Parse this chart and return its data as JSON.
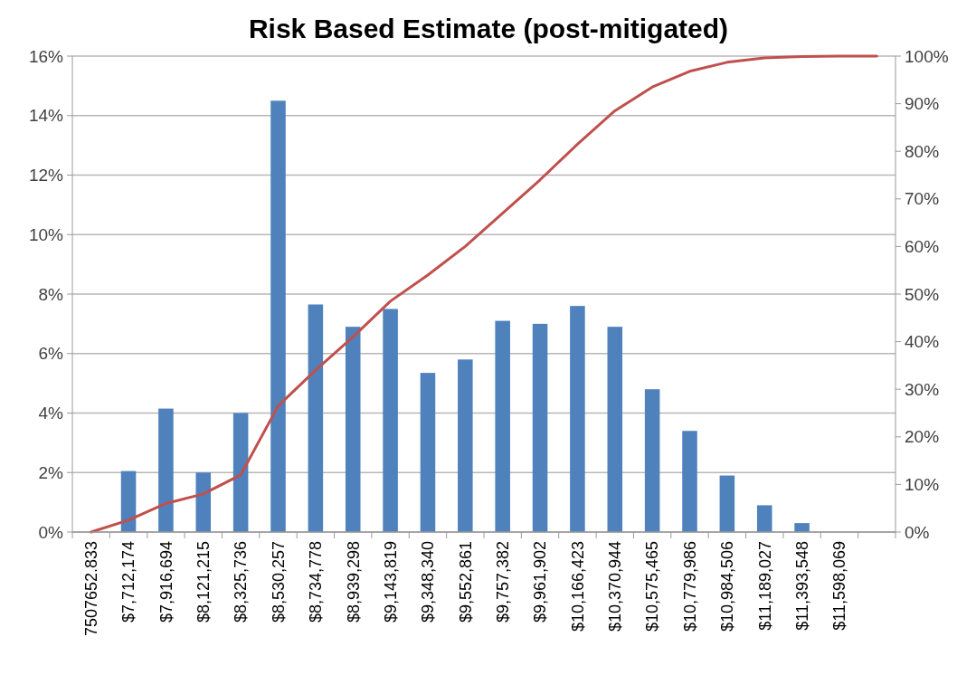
{
  "chart_data": {
    "type": "bar",
    "title": "Risk Based Estimate (post-mitigated)",
    "categories": [
      "7507652.833",
      "$7,712,174",
      "$7,916,694",
      "$8,121,215",
      "$8,325,736",
      "$8,530,257",
      "$8,734,778",
      "$8,939,298",
      "$9,143,819",
      "$9,348,340",
      "$9,552,861",
      "$9,757,382",
      "$9,961,902",
      "$10,166,423",
      "$10,370,944",
      "$10,575,465",
      "$10,779,986",
      "$10,984,506",
      "$11,189,027",
      "$11,393,548",
      "$11,598,069",
      null
    ],
    "series": [
      {
        "color": "#4f81bd",
        "values": [
          0,
          2.05,
          4.15,
          2.0,
          4.0,
          14.5,
          7.65,
          6.9,
          7.5,
          5.35,
          5.8,
          7.1,
          7.0,
          7.6,
          6.9,
          4.8,
          3.4,
          1.9,
          0.9,
          0.3,
          0,
          0
        ]
      },
      {
        "type": "line",
        "axis": "y2",
        "color": "#c0504d",
        "values": [
          0,
          2.5,
          6,
          8,
          12,
          26.5,
          34,
          41,
          48.5,
          54,
          60,
          67,
          74,
          81.5,
          88.5,
          93.5,
          96.8,
          98.7,
          99.6,
          99.9,
          100,
          100
        ]
      }
    ],
    "ylim": [
      0,
      16
    ],
    "yticks": [
      {
        "value": 0,
        "label": "0%"
      },
      {
        "value": 2,
        "label": "2%"
      },
      {
        "value": 4,
        "label": "4%"
      },
      {
        "value": 6,
        "label": "6%"
      },
      {
        "value": 8,
        "label": "8%"
      },
      {
        "value": 10,
        "label": "10%"
      },
      {
        "value": 12,
        "label": "12%"
      },
      {
        "value": 14,
        "label": "14%"
      },
      {
        "value": 16,
        "label": "16%"
      }
    ],
    "y2lim": [
      0,
      100
    ],
    "y2ticks": [
      {
        "value": 0,
        "label": "0%"
      },
      {
        "value": 10,
        "label": "10%"
      },
      {
        "value": 20,
        "label": "20%"
      },
      {
        "value": 30,
        "label": "30%"
      },
      {
        "value": 40,
        "label": "40%"
      },
      {
        "value": 50,
        "label": "50%"
      },
      {
        "value": 60,
        "label": "60%"
      },
      {
        "value": 70,
        "label": "70%"
      },
      {
        "value": 80,
        "label": "80%"
      },
      {
        "value": 90,
        "label": "90%"
      },
      {
        "value": 100,
        "label": "100%"
      }
    ],
    "grid": "y"
  }
}
